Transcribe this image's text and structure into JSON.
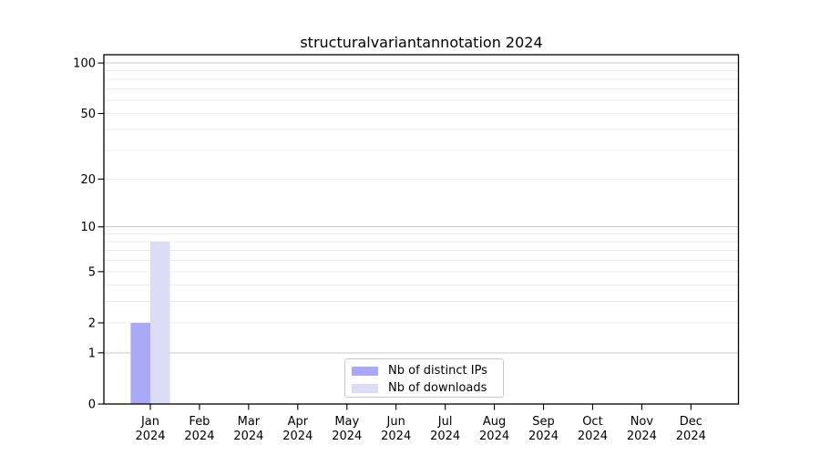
{
  "chart_data": {
    "type": "bar",
    "title": "structuralvariantannotation 2024",
    "categories": [
      "Jan",
      "Feb",
      "Mar",
      "Apr",
      "May",
      "Jun",
      "Jul",
      "Aug",
      "Sep",
      "Oct",
      "Nov",
      "Dec"
    ],
    "x_tick_second_line": "2024",
    "series": [
      {
        "name": "Nb of distinct IPs",
        "color": "#a9a9f7",
        "values": [
          2,
          0,
          0,
          0,
          0,
          0,
          0,
          0,
          0,
          0,
          0,
          0
        ]
      },
      {
        "name": "Nb of downloads",
        "color": "#dcdcf7",
        "values": [
          8,
          0,
          0,
          0,
          0,
          0,
          0,
          0,
          0,
          0,
          0,
          0
        ]
      }
    ],
    "y_axis": {
      "scale": "log10(v+1)",
      "ylim": [
        0,
        112
      ],
      "tick_values": [
        0,
        1,
        2,
        5,
        10,
        20,
        50,
        100
      ],
      "major_grid_values": [
        1,
        10,
        100
      ],
      "minor_grid_values": [
        2,
        3,
        4,
        5,
        6,
        7,
        8,
        9,
        20,
        30,
        40,
        50,
        60,
        70,
        80,
        90
      ]
    },
    "legend": {
      "position": "bottom-center"
    },
    "grid": "horizontal",
    "colors": {
      "axis": "#000000",
      "text": "#000000",
      "major_grid": "#c8c8c8",
      "minor_grid": "#ececec",
      "background": "#ffffff"
    }
  }
}
